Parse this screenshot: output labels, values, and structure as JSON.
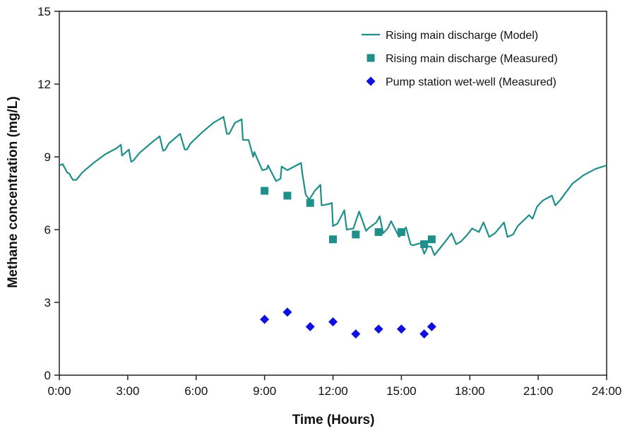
{
  "chart_data": {
    "type": "line",
    "xlabel": "Time (Hours)",
    "ylabel": "Methane concentration (mg/L)",
    "xlim": [
      0,
      24
    ],
    "ylim": [
      0,
      15
    ],
    "x_ticks": [
      0,
      3,
      6,
      9,
      12,
      15,
      18,
      21,
      24
    ],
    "x_tick_labels": [
      "0:00",
      "3:00",
      "6:00",
      "9:00",
      "12:00",
      "15:00",
      "18:00",
      "21:00",
      "24:00"
    ],
    "y_ticks": [
      0,
      3,
      6,
      9,
      12,
      15
    ],
    "y_tick_labels": [
      "0",
      "3",
      "6",
      "9",
      "12",
      "15"
    ],
    "grid": false,
    "legend_position": "top-right",
    "series": [
      {
        "name": "Rising main discharge (Model)",
        "kind": "line",
        "color": "#1f8f8a",
        "x": [
          0,
          0.15,
          0.35,
          0.45,
          0.5,
          0.6,
          0.75,
          1.0,
          1.5,
          2.0,
          2.5,
          2.7,
          2.75,
          3.05,
          3.15,
          3.25,
          3.5,
          4.0,
          4.4,
          4.55,
          4.65,
          4.8,
          5.3,
          5.5,
          5.6,
          5.75,
          6.25,
          6.75,
          7.2,
          7.35,
          7.45,
          7.7,
          8.0,
          8.05,
          8.3,
          8.5,
          8.55,
          8.9,
          9.1,
          9.15,
          9.5,
          9.7,
          9.75,
          10.0,
          10.6,
          10.65,
          10.8,
          10.95,
          11.0,
          11.2,
          11.45,
          11.5,
          11.8,
          11.95,
          12.0,
          12.2,
          12.5,
          12.6,
          12.9,
          13.0,
          13.15,
          13.45,
          13.55,
          13.9,
          14.05,
          14.2,
          14.4,
          14.55,
          14.9,
          15.05,
          15.2,
          15.4,
          15.5,
          15.85,
          16.0,
          16.15,
          16.3,
          16.45,
          16.75,
          17.0,
          17.2,
          17.4,
          17.6,
          17.9,
          18.1,
          18.4,
          18.6,
          18.85,
          19.1,
          19.5,
          19.65,
          19.9,
          20.1,
          20.6,
          20.75,
          20.95,
          21.2,
          21.6,
          21.75,
          21.95,
          22.5,
          23.0,
          23.5,
          24.0
        ],
        "y": [
          8.65,
          8.7,
          8.35,
          8.3,
          8.2,
          8.05,
          8.05,
          8.35,
          8.75,
          9.1,
          9.35,
          9.5,
          9.05,
          9.3,
          8.8,
          8.85,
          9.15,
          9.55,
          9.85,
          9.25,
          9.3,
          9.55,
          9.95,
          9.3,
          9.3,
          9.55,
          10.0,
          10.4,
          10.65,
          9.95,
          9.95,
          10.4,
          10.55,
          9.7,
          9.7,
          9.0,
          9.2,
          8.45,
          8.5,
          8.65,
          8.0,
          8.1,
          8.6,
          8.45,
          8.75,
          8.35,
          7.45,
          7.25,
          7.3,
          7.6,
          7.85,
          7.0,
          7.05,
          7.1,
          6.15,
          6.25,
          6.8,
          6.0,
          6.05,
          6.35,
          6.75,
          5.95,
          6.05,
          6.3,
          6.55,
          5.85,
          6.05,
          6.35,
          5.7,
          5.85,
          6.1,
          5.4,
          5.35,
          5.45,
          5.0,
          5.3,
          5.3,
          4.95,
          5.3,
          5.6,
          5.85,
          5.4,
          5.5,
          5.8,
          6.05,
          5.9,
          6.3,
          5.7,
          5.85,
          6.3,
          5.7,
          5.8,
          6.15,
          6.6,
          6.45,
          6.95,
          7.2,
          7.4,
          7.0,
          7.2,
          7.9,
          8.25,
          8.5,
          8.65
        ]
      },
      {
        "name": "Rising main discharge (Measured)",
        "kind": "square",
        "color": "#1f8f8a",
        "x": [
          9,
          10,
          11,
          12,
          13,
          14,
          15,
          16,
          16.33
        ],
        "y": [
          7.6,
          7.4,
          7.1,
          5.6,
          5.8,
          5.9,
          5.9,
          5.4,
          5.6
        ]
      },
      {
        "name": "Pump station wet-well (Measured)",
        "kind": "diamond",
        "color": "#1010e0",
        "x": [
          9,
          10,
          11,
          12,
          13,
          14,
          15,
          16,
          16.33
        ],
        "y": [
          2.3,
          2.6,
          2.0,
          2.2,
          1.7,
          1.9,
          1.9,
          1.7,
          2.0
        ]
      }
    ]
  }
}
